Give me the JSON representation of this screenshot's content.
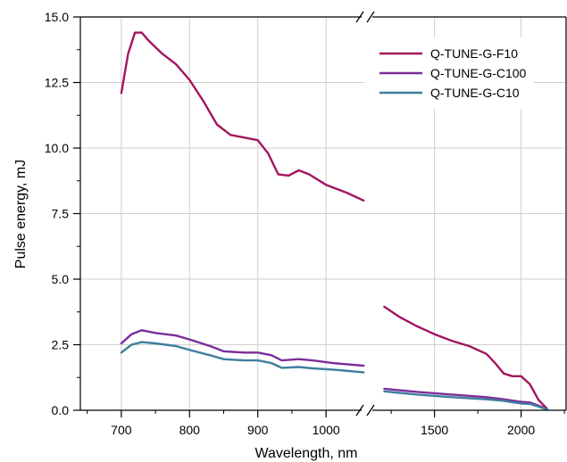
{
  "chart_data": {
    "type": "line",
    "xlabel": "Wavelength, nm",
    "ylabel": "Pulse energy, mJ",
    "ylim": [
      0,
      15
    ],
    "yticks": [
      "0.0",
      "2.5",
      "5.0",
      "7.5",
      "10.0",
      "12.5",
      "15.0"
    ],
    "x_segments": [
      {
        "range": [
          640,
          1060
        ],
        "ticks": [
          "700",
          "800",
          "900",
          "1000"
        ]
      },
      {
        "range": [
          1110,
          2260
        ],
        "ticks": [
          "1500",
          "2000"
        ]
      }
    ],
    "axis_break": true,
    "grid": true,
    "legend_position": "top-right",
    "series": [
      {
        "name": "Q-TUNE-G-F10",
        "color": "#a3155e",
        "points": [
          [
            700,
            12.1
          ],
          [
            710,
            13.6
          ],
          [
            720,
            14.4
          ],
          [
            730,
            14.4
          ],
          [
            740,
            14.1
          ],
          [
            760,
            13.6
          ],
          [
            780,
            13.2
          ],
          [
            800,
            12.6
          ],
          [
            820,
            11.8
          ],
          [
            840,
            10.9
          ],
          [
            860,
            10.5
          ],
          [
            880,
            10.4
          ],
          [
            900,
            10.3
          ],
          [
            915,
            9.8
          ],
          [
            930,
            9.0
          ],
          [
            945,
            8.95
          ],
          [
            960,
            9.15
          ],
          [
            975,
            9.0
          ],
          [
            1000,
            8.6
          ],
          [
            1030,
            8.3
          ],
          [
            1055,
            8.0
          ]
        ],
        "points_right": [
          [
            1210,
            3.95
          ],
          [
            1300,
            3.55
          ],
          [
            1400,
            3.2
          ],
          [
            1500,
            2.9
          ],
          [
            1600,
            2.65
          ],
          [
            1700,
            2.45
          ],
          [
            1800,
            2.15
          ],
          [
            1850,
            1.8
          ],
          [
            1900,
            1.4
          ],
          [
            1950,
            1.3
          ],
          [
            2000,
            1.3
          ],
          [
            2050,
            1.0
          ],
          [
            2100,
            0.4
          ],
          [
            2150,
            0.05
          ]
        ]
      },
      {
        "name": "Q-TUNE-G-C100",
        "color": "#7b2e9b",
        "points": [
          [
            700,
            2.55
          ],
          [
            715,
            2.9
          ],
          [
            730,
            3.05
          ],
          [
            750,
            2.95
          ],
          [
            780,
            2.85
          ],
          [
            800,
            2.7
          ],
          [
            830,
            2.45
          ],
          [
            850,
            2.25
          ],
          [
            880,
            2.2
          ],
          [
            900,
            2.2
          ],
          [
            920,
            2.1
          ],
          [
            935,
            1.9
          ],
          [
            960,
            1.95
          ],
          [
            980,
            1.9
          ],
          [
            1010,
            1.8
          ],
          [
            1055,
            1.7
          ]
        ],
        "points_right": [
          [
            1210,
            0.82
          ],
          [
            1400,
            0.7
          ],
          [
            1600,
            0.6
          ],
          [
            1800,
            0.5
          ],
          [
            1900,
            0.42
          ],
          [
            2000,
            0.32
          ],
          [
            2050,
            0.3
          ],
          [
            2100,
            0.18
          ],
          [
            2150,
            0.04
          ]
        ]
      },
      {
        "name": "Q-TUNE-G-C10",
        "color": "#3f7e9e",
        "points": [
          [
            700,
            2.2
          ],
          [
            715,
            2.5
          ],
          [
            730,
            2.6
          ],
          [
            750,
            2.55
          ],
          [
            780,
            2.45
          ],
          [
            800,
            2.3
          ],
          [
            830,
            2.1
          ],
          [
            850,
            1.95
          ],
          [
            880,
            1.9
          ],
          [
            900,
            1.9
          ],
          [
            920,
            1.8
          ],
          [
            935,
            1.62
          ],
          [
            960,
            1.65
          ],
          [
            980,
            1.6
          ],
          [
            1010,
            1.55
          ],
          [
            1055,
            1.45
          ]
        ],
        "points_right": [
          [
            1210,
            0.72
          ],
          [
            1400,
            0.6
          ],
          [
            1600,
            0.5
          ],
          [
            1800,
            0.42
          ],
          [
            1900,
            0.36
          ],
          [
            2000,
            0.26
          ],
          [
            2050,
            0.24
          ],
          [
            2100,
            0.14
          ],
          [
            2150,
            0.03
          ]
        ]
      }
    ]
  }
}
